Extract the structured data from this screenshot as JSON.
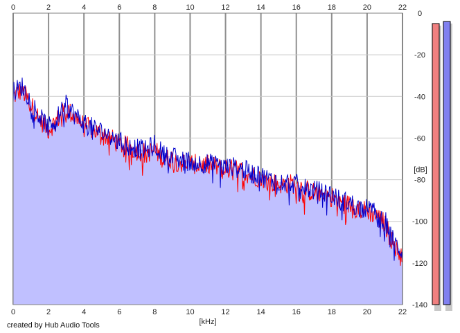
{
  "chart_data": {
    "type": "line",
    "title": "",
    "xlabel": "[kHz]",
    "ylabel": "[dB]",
    "xlim": [
      0,
      22
    ],
    "ylim": [
      -140,
      0
    ],
    "x_ticks": [
      0,
      2,
      4,
      6,
      8,
      10,
      12,
      14,
      16,
      18,
      20,
      22
    ],
    "y_ticks": [
      0,
      -20,
      -40,
      -60,
      -80,
      -100,
      -120,
      -140
    ],
    "grid": true,
    "fill_color": "#c0c0ff",
    "series": [
      {
        "color": "#ff0000",
        "x": [
          0,
          0.5,
          1,
          1.5,
          2,
          2.5,
          3,
          3.5,
          4,
          4.5,
          5,
          5.5,
          6,
          6.5,
          7,
          7.5,
          8,
          8.5,
          9,
          9.5,
          10,
          10.5,
          11,
          11.5,
          12,
          12.5,
          13,
          13.5,
          14,
          14.5,
          15,
          15.5,
          16,
          16.5,
          17,
          17.5,
          18,
          18.5,
          19,
          19.5,
          20,
          20.5,
          21,
          21.5,
          22
        ],
        "values": [
          -40,
          -37,
          -44,
          -51,
          -56,
          -51,
          -46,
          -50,
          -54,
          -56,
          -58,
          -60,
          -63,
          -64,
          -66,
          -67,
          -66,
          -70,
          -70,
          -72,
          -72,
          -73,
          -73,
          -74,
          -75,
          -75,
          -76,
          -78,
          -79,
          -81,
          -82,
          -82,
          -82,
          -85,
          -86,
          -86,
          -88,
          -91,
          -92,
          -94,
          -95,
          -97,
          -101,
          -111,
          -117
        ]
      },
      {
        "color": "#0000cc",
        "x": [
          0,
          0.5,
          1,
          1.5,
          2,
          2.5,
          3,
          3.5,
          4,
          4.5,
          5,
          5.5,
          6,
          6.5,
          7,
          7.5,
          8,
          8.5,
          9,
          9.5,
          10,
          10.5,
          11,
          11.5,
          12,
          12.5,
          13,
          13.5,
          14,
          14.5,
          15,
          15.5,
          16,
          16.5,
          17,
          17.5,
          18,
          18.5,
          19,
          19.5,
          20,
          20.5,
          21,
          21.5,
          22
        ],
        "values": [
          -38,
          -35,
          -42,
          -50,
          -55,
          -50,
          -44,
          -49,
          -53,
          -55,
          -57,
          -59,
          -62,
          -63,
          -65,
          -66,
          -63,
          -68,
          -69,
          -71,
          -71,
          -72,
          -72,
          -73,
          -74,
          -74,
          -75,
          -77,
          -78,
          -80,
          -81,
          -81,
          -82,
          -84,
          -85,
          -86,
          -87,
          -90,
          -91,
          -93,
          -94,
          -96,
          -99,
          -110,
          -115
        ]
      }
    ],
    "meters": [
      {
        "color": "#f08080",
        "level_db": -5
      },
      {
        "color": "#8080f0",
        "level_db": -4
      }
    ]
  },
  "credit": "created by Hub Audio Tools"
}
